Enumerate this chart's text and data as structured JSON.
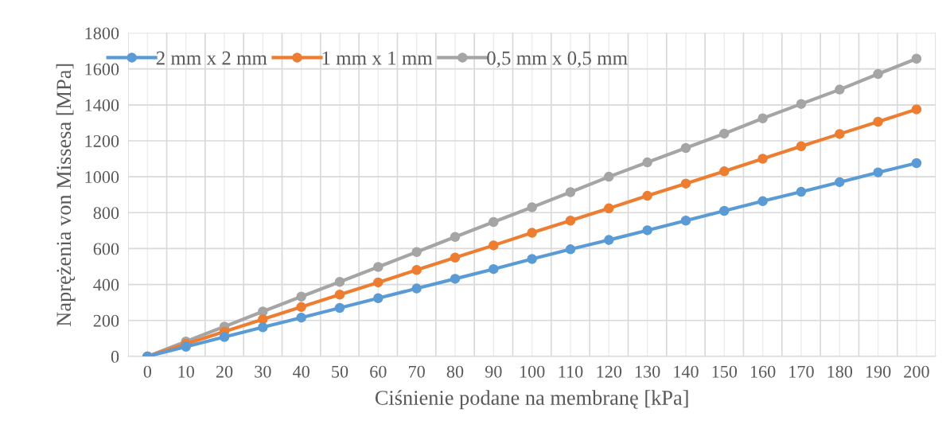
{
  "chart_data": {
    "type": "line",
    "xlabel": "Ciśnienie podane na membranę [kPa]",
    "ylabel": "Naprężenia von Missesa [MPa]",
    "categories": [
      "0",
      "10",
      "20",
      "30",
      "40",
      "50",
      "60",
      "70",
      "80",
      "90",
      "100",
      "110",
      "120",
      "130",
      "140",
      "150",
      "160",
      "170",
      "180",
      "190",
      "200"
    ],
    "series": [
      {
        "name": "2 mm x 2 mm",
        "color": "#5b9bd5",
        "values": [
          0,
          54,
          108,
          162,
          216,
          270,
          324,
          378,
          432,
          486,
          542,
          596,
          648,
          702,
          756,
          810,
          864,
          916,
          970,
          1024,
          1076
        ]
      },
      {
        "name": "1 mm x 1 mm",
        "color": "#ed7d31",
        "values": [
          0,
          69,
          138,
          207,
          275,
          344,
          412,
          481,
          550,
          618,
          688,
          756,
          824,
          894,
          962,
          1030,
          1100,
          1170,
          1238,
          1306,
          1375
        ]
      },
      {
        "name": "0,5 mm x 0,5 mm",
        "color": "#a5a5a5",
        "values": [
          0,
          83,
          166,
          250,
          333,
          415,
          498,
          581,
          665,
          748,
          830,
          914,
          1000,
          1080,
          1160,
          1240,
          1325,
          1405,
          1485,
          1572,
          1657
        ]
      }
    ],
    "ylim": [
      0,
      1800
    ],
    "yticks": [
      0,
      200,
      400,
      600,
      800,
      1000,
      1200,
      1400,
      1600,
      1800
    ],
    "grid": true,
    "legend": "top left",
    "marker": "circle",
    "line_style": "solid"
  }
}
